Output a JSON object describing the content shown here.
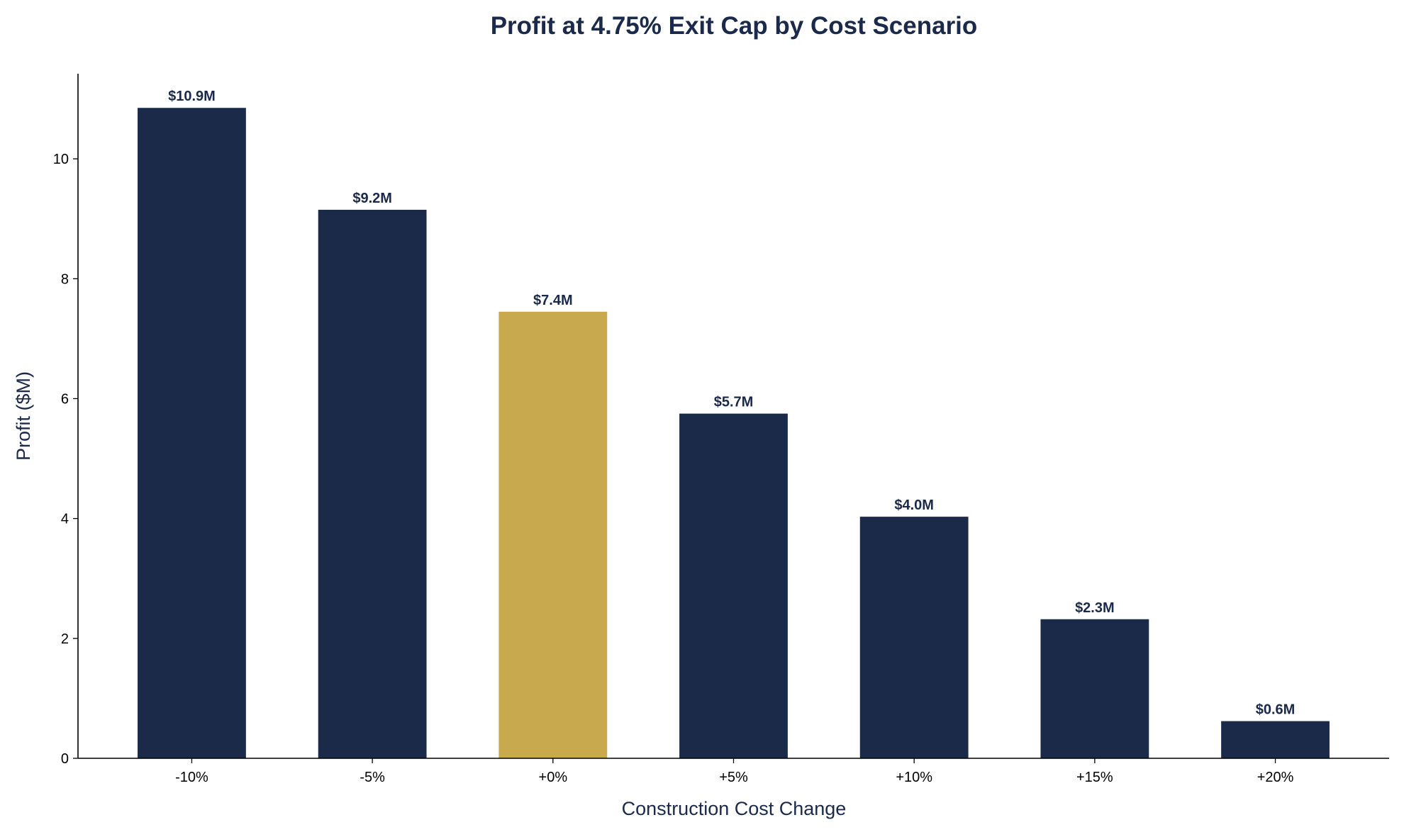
{
  "chart_data": {
    "type": "bar",
    "title": "Profit at 4.75% Exit Cap by Cost Scenario",
    "xlabel": "Construction Cost Change",
    "ylabel": "Profit ($M)",
    "categories": [
      "-10%",
      "-5%",
      "+0%",
      "+5%",
      "+10%",
      "+15%",
      "+20%"
    ],
    "values": [
      10.85,
      9.15,
      7.45,
      5.75,
      4.03,
      2.32,
      0.62
    ],
    "data_labels": [
      "$10.9M",
      "$9.2M",
      "$7.4M",
      "$5.7M",
      "$4.0M",
      "$2.3M",
      "$0.6M"
    ],
    "highlight_index": 2,
    "ylim": [
      0,
      11.42
    ],
    "yticks": [
      0,
      2,
      4,
      6,
      8,
      10
    ],
    "grid": false,
    "colors": {
      "bar": "#1c2a4a",
      "highlight": "#c8a94e",
      "text": "#1b2a4a"
    }
  }
}
